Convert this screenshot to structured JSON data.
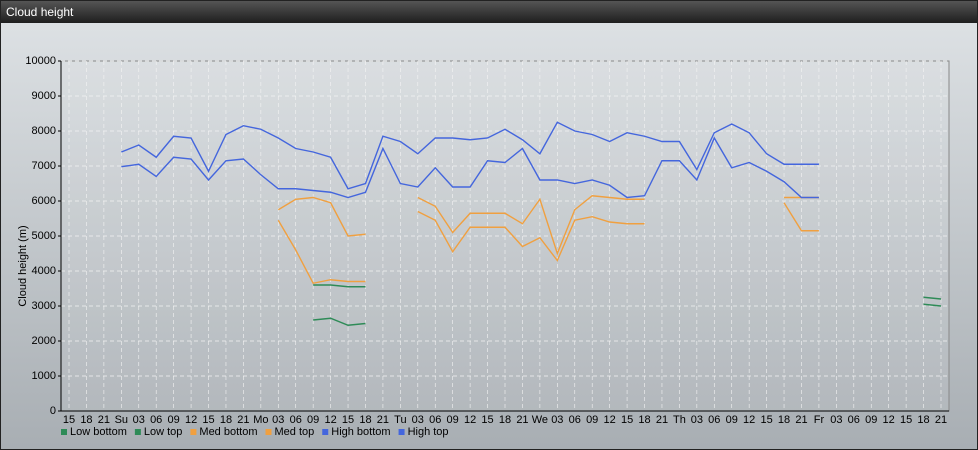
{
  "chart_data": {
    "type": "line",
    "title": "Cloud height",
    "y_label": "Cloud height (m)",
    "categories": [
      "15",
      "18",
      "21",
      "Su",
      "03",
      "06",
      "09",
      "12",
      "15",
      "18",
      "21",
      "Mo",
      "03",
      "06",
      "09",
      "12",
      "15",
      "18",
      "21",
      "Tu",
      "03",
      "06",
      "09",
      "12",
      "15",
      "18",
      "21",
      "We",
      "03",
      "06",
      "09",
      "12",
      "15",
      "18",
      "21",
      "Th",
      "03",
      "06",
      "09",
      "12",
      "15",
      "18",
      "21",
      "Fr",
      "03",
      "06",
      "09",
      "12",
      "15",
      "18",
      "21"
    ],
    "ylim": [
      0,
      10000
    ],
    "yticks": [
      0,
      1000,
      2000,
      3000,
      4000,
      5000,
      6000,
      7000,
      8000,
      9000,
      10000
    ],
    "grid": true,
    "legend": "bottom-left",
    "series": [
      {
        "name": "Low bottom",
        "color": "#2e8b57",
        "values": [
          null,
          null,
          null,
          null,
          null,
          null,
          null,
          null,
          null,
          null,
          null,
          null,
          null,
          null,
          2600,
          2650,
          2450,
          2500,
          null,
          null,
          null,
          null,
          null,
          null,
          null,
          null,
          null,
          null,
          null,
          null,
          null,
          null,
          null,
          null,
          null,
          null,
          null,
          null,
          null,
          null,
          null,
          null,
          null,
          null,
          null,
          null,
          null,
          null,
          null,
          3050,
          3000
        ]
      },
      {
        "name": "Low top",
        "color": "#2e8b57",
        "values": [
          null,
          null,
          null,
          null,
          null,
          null,
          null,
          null,
          null,
          null,
          null,
          null,
          null,
          null,
          3600,
          3600,
          3550,
          3550,
          null,
          null,
          null,
          null,
          null,
          null,
          null,
          null,
          null,
          null,
          null,
          null,
          null,
          null,
          null,
          null,
          null,
          null,
          null,
          null,
          null,
          null,
          null,
          null,
          null,
          null,
          null,
          null,
          null,
          null,
          null,
          3250,
          3200
        ]
      },
      {
        "name": "Med bottom",
        "color": "#f0a040",
        "values": [
          null,
          null,
          null,
          null,
          null,
          null,
          null,
          null,
          null,
          null,
          null,
          null,
          5450,
          4600,
          3650,
          3750,
          3700,
          3700,
          null,
          null,
          5700,
          5450,
          4550,
          5250,
          5250,
          5250,
          4700,
          4950,
          4300,
          5450,
          5550,
          5400,
          5350,
          5350,
          null,
          null,
          null,
          null,
          null,
          null,
          null,
          5950,
          5150,
          5150,
          null,
          null,
          null,
          null,
          null,
          null,
          null
        ]
      },
      {
        "name": "Med top",
        "color": "#f0a040",
        "values": [
          null,
          null,
          null,
          null,
          null,
          null,
          null,
          null,
          null,
          null,
          null,
          null,
          5750,
          6050,
          6100,
          5950,
          5000,
          5050,
          null,
          null,
          6100,
          5850,
          5100,
          5650,
          5650,
          5650,
          5350,
          6050,
          4500,
          5750,
          6150,
          6100,
          6050,
          6050,
          null,
          null,
          null,
          null,
          null,
          null,
          null,
          6100,
          6100,
          6100,
          null,
          null,
          null,
          null,
          null,
          null,
          null
        ]
      },
      {
        "name": "High bottom",
        "color": "#4466dd",
        "values": [
          null,
          null,
          null,
          6980,
          7050,
          6700,
          7250,
          7200,
          6600,
          7150,
          7200,
          6750,
          6350,
          6350,
          6300,
          6250,
          6100,
          6250,
          7500,
          6500,
          6400,
          6950,
          6400,
          6400,
          7150,
          7100,
          7500,
          6600,
          6600,
          6500,
          6600,
          6450,
          6100,
          6150,
          7150,
          7150,
          6600,
          7800,
          6950,
          7100,
          6850,
          6550,
          6100,
          6100,
          null,
          null,
          null,
          null,
          null,
          null,
          null
        ]
      },
      {
        "name": "High top",
        "color": "#4466dd",
        "values": [
          null,
          null,
          null,
          7400,
          7600,
          7250,
          7850,
          7800,
          6850,
          7900,
          8150,
          8050,
          7800,
          7500,
          7400,
          7250,
          6350,
          6500,
          7850,
          7700,
          7350,
          7800,
          7800,
          7750,
          7800,
          8050,
          7750,
          7350,
          8250,
          8000,
          7900,
          7700,
          7950,
          7850,
          7700,
          7700,
          6900,
          7950,
          8200,
          7950,
          7350,
          7050,
          7050,
          7050,
          null,
          null,
          null,
          null,
          null,
          null,
          null
        ]
      }
    ]
  }
}
